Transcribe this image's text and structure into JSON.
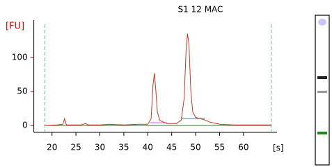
{
  "chart_data": {
    "type": "line",
    "title": "S1 12 MAC",
    "y_label": "[FU]",
    "x_label": "[s]",
    "x": [
      18.5,
      21,
      22.3,
      22.6,
      23,
      26,
      27,
      27.5,
      30,
      32,
      35,
      38,
      40,
      40.7,
      41.1,
      41.4,
      41.7,
      42,
      42.5,
      43,
      44,
      46,
      47,
      47.6,
      48,
      48.3,
      48.6,
      49,
      49.4,
      50,
      51,
      52,
      53,
      55,
      58,
      62,
      65.8
    ],
    "series": [
      {
        "color": "#c0392b",
        "values": [
          0,
          1,
          2,
          10,
          1,
          1,
          3,
          1,
          1,
          2,
          1,
          2,
          2,
          10,
          60,
          77,
          50,
          20,
          8,
          6,
          3,
          3,
          8,
          40,
          110,
          135,
          120,
          50,
          20,
          12,
          10,
          8,
          5,
          2,
          1,
          1,
          1
        ]
      }
    ],
    "markers": [
      18.5,
      65.8
    ],
    "xlim": [
      16.2,
      67
    ],
    "ylim": [
      -10,
      155
    ],
    "xticks": [
      20,
      25,
      30,
      35,
      40,
      45,
      50,
      55,
      60
    ],
    "yticks": [
      0,
      50,
      100
    ]
  }
}
